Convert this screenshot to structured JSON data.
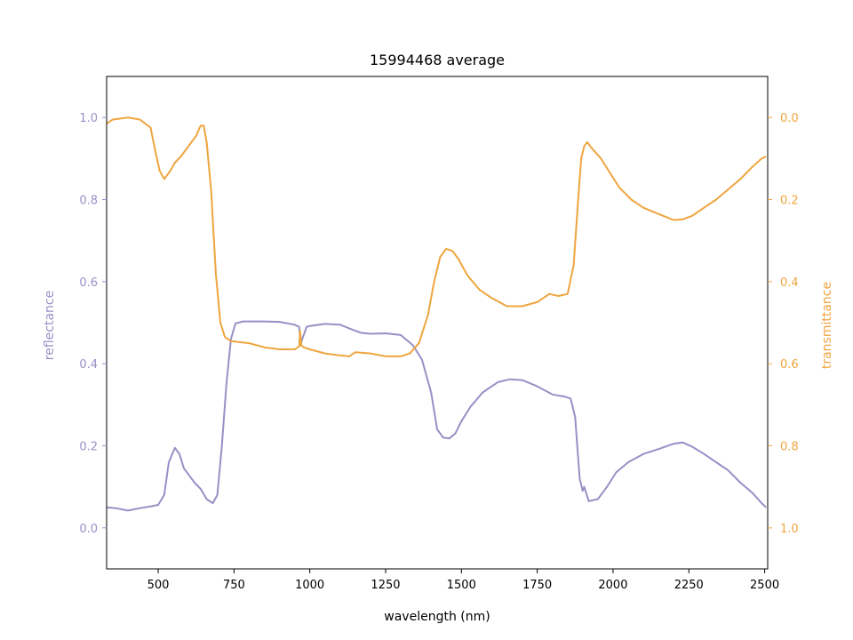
{
  "chart_data": {
    "type": "line",
    "title": "15994468 average",
    "xlabel": "wavelength (nm)",
    "ylabel_left": "reflectance",
    "ylabel_right": "transmittance",
    "xlim": [
      330,
      2510
    ],
    "ylim_left": [
      -0.1,
      1.1
    ],
    "ylim_right": [
      1.1,
      -0.1
    ],
    "right_axis_inverted": true,
    "grid": false,
    "x_ticks": [
      500,
      750,
      1000,
      1250,
      1500,
      1750,
      2000,
      2250,
      2500
    ],
    "x_tick_labels": [
      "500",
      "750",
      "1000",
      "1250",
      "1500",
      "1750",
      "2000",
      "2250",
      "2500"
    ],
    "y_left_ticks": [
      0.0,
      0.2,
      0.4,
      0.6,
      0.8,
      1.0
    ],
    "y_left_tick_labels": [
      "0.0",
      "0.2",
      "0.4",
      "0.6",
      "0.8",
      "1.0"
    ],
    "y_right_ticks": [
      0.0,
      0.2,
      0.4,
      0.6,
      0.8,
      1.0
    ],
    "y_right_tick_labels": [
      "0.0",
      "0.2",
      "0.4",
      "0.6",
      "0.8",
      "1.0"
    ],
    "colors": {
      "reflectance": "#9591c6",
      "transmittance": "#eea53f"
    },
    "series": [
      {
        "axis": "left",
        "color": "#9591c6",
        "points": [
          [
            330,
            0.05
          ],
          [
            360,
            0.048
          ],
          [
            400,
            0.042
          ],
          [
            440,
            0.048
          ],
          [
            480,
            0.053
          ],
          [
            500,
            0.056
          ],
          [
            520,
            0.08
          ],
          [
            535,
            0.16
          ],
          [
            555,
            0.195
          ],
          [
            570,
            0.18
          ],
          [
            585,
            0.145
          ],
          [
            600,
            0.13
          ],
          [
            620,
            0.11
          ],
          [
            640,
            0.095
          ],
          [
            660,
            0.07
          ],
          [
            680,
            0.06
          ],
          [
            695,
            0.08
          ],
          [
            710,
            0.2
          ],
          [
            725,
            0.35
          ],
          [
            740,
            0.46
          ],
          [
            755,
            0.498
          ],
          [
            780,
            0.503
          ],
          [
            850,
            0.503
          ],
          [
            900,
            0.502
          ],
          [
            950,
            0.495
          ],
          [
            965,
            0.49
          ],
          [
            970,
            0.445
          ],
          [
            975,
            0.46
          ],
          [
            990,
            0.49
          ],
          [
            1000,
            0.492
          ],
          [
            1050,
            0.497
          ],
          [
            1100,
            0.495
          ],
          [
            1150,
            0.48
          ],
          [
            1170,
            0.475
          ],
          [
            1200,
            0.473
          ],
          [
            1250,
            0.474
          ],
          [
            1300,
            0.47
          ],
          [
            1340,
            0.445
          ],
          [
            1370,
            0.41
          ],
          [
            1400,
            0.33
          ],
          [
            1420,
            0.24
          ],
          [
            1440,
            0.22
          ],
          [
            1460,
            0.218
          ],
          [
            1480,
            0.23
          ],
          [
            1500,
            0.26
          ],
          [
            1530,
            0.295
          ],
          [
            1570,
            0.33
          ],
          [
            1620,
            0.355
          ],
          [
            1660,
            0.362
          ],
          [
            1700,
            0.36
          ],
          [
            1750,
            0.345
          ],
          [
            1800,
            0.325
          ],
          [
            1840,
            0.32
          ],
          [
            1860,
            0.315
          ],
          [
            1875,
            0.27
          ],
          [
            1890,
            0.12
          ],
          [
            1900,
            0.09
          ],
          [
            1905,
            0.1
          ],
          [
            1920,
            0.065
          ],
          [
            1950,
            0.07
          ],
          [
            1980,
            0.1
          ],
          [
            2010,
            0.135
          ],
          [
            2050,
            0.16
          ],
          [
            2100,
            0.18
          ],
          [
            2150,
            0.192
          ],
          [
            2200,
            0.205
          ],
          [
            2230,
            0.208
          ],
          [
            2260,
            0.198
          ],
          [
            2300,
            0.18
          ],
          [
            2340,
            0.16
          ],
          [
            2380,
            0.14
          ],
          [
            2420,
            0.11
          ],
          [
            2460,
            0.085
          ],
          [
            2490,
            0.06
          ],
          [
            2505,
            0.05
          ]
        ]
      },
      {
        "axis": "right",
        "color": "#eea53f",
        "points": [
          [
            330,
            0.015
          ],
          [
            350,
            0.005
          ],
          [
            400,
            0.0
          ],
          [
            440,
            0.005
          ],
          [
            475,
            0.025
          ],
          [
            490,
            0.08
          ],
          [
            505,
            0.13
          ],
          [
            520,
            0.15
          ],
          [
            540,
            0.13
          ],
          [
            555,
            0.11
          ],
          [
            575,
            0.095
          ],
          [
            600,
            0.07
          ],
          [
            625,
            0.045
          ],
          [
            640,
            0.02
          ],
          [
            650,
            0.02
          ],
          [
            660,
            0.06
          ],
          [
            675,
            0.18
          ],
          [
            690,
            0.38
          ],
          [
            705,
            0.5
          ],
          [
            720,
            0.535
          ],
          [
            740,
            0.545
          ],
          [
            800,
            0.55
          ],
          [
            850,
            0.56
          ],
          [
            900,
            0.565
          ],
          [
            950,
            0.565
          ],
          [
            965,
            0.558
          ],
          [
            968,
            0.52
          ],
          [
            972,
            0.555
          ],
          [
            980,
            0.56
          ],
          [
            1000,
            0.565
          ],
          [
            1050,
            0.575
          ],
          [
            1100,
            0.58
          ],
          [
            1130,
            0.582
          ],
          [
            1150,
            0.572
          ],
          [
            1200,
            0.575
          ],
          [
            1250,
            0.582
          ],
          [
            1300,
            0.582
          ],
          [
            1330,
            0.575
          ],
          [
            1360,
            0.55
          ],
          [
            1390,
            0.48
          ],
          [
            1410,
            0.4
          ],
          [
            1430,
            0.34
          ],
          [
            1450,
            0.32
          ],
          [
            1470,
            0.325
          ],
          [
            1490,
            0.345
          ],
          [
            1520,
            0.385
          ],
          [
            1560,
            0.42
          ],
          [
            1600,
            0.44
          ],
          [
            1650,
            0.46
          ],
          [
            1700,
            0.46
          ],
          [
            1750,
            0.45
          ],
          [
            1790,
            0.43
          ],
          [
            1820,
            0.435
          ],
          [
            1850,
            0.43
          ],
          [
            1870,
            0.36
          ],
          [
            1885,
            0.2
          ],
          [
            1895,
            0.1
          ],
          [
            1905,
            0.07
          ],
          [
            1915,
            0.06
          ],
          [
            1930,
            0.075
          ],
          [
            1960,
            0.1
          ],
          [
            1990,
            0.135
          ],
          [
            2020,
            0.17
          ],
          [
            2060,
            0.2
          ],
          [
            2100,
            0.22
          ],
          [
            2150,
            0.235
          ],
          [
            2200,
            0.25
          ],
          [
            2230,
            0.248
          ],
          [
            2260,
            0.24
          ],
          [
            2300,
            0.22
          ],
          [
            2340,
            0.2
          ],
          [
            2380,
            0.175
          ],
          [
            2420,
            0.15
          ],
          [
            2460,
            0.12
          ],
          [
            2490,
            0.1
          ],
          [
            2505,
            0.095
          ]
        ]
      }
    ]
  }
}
